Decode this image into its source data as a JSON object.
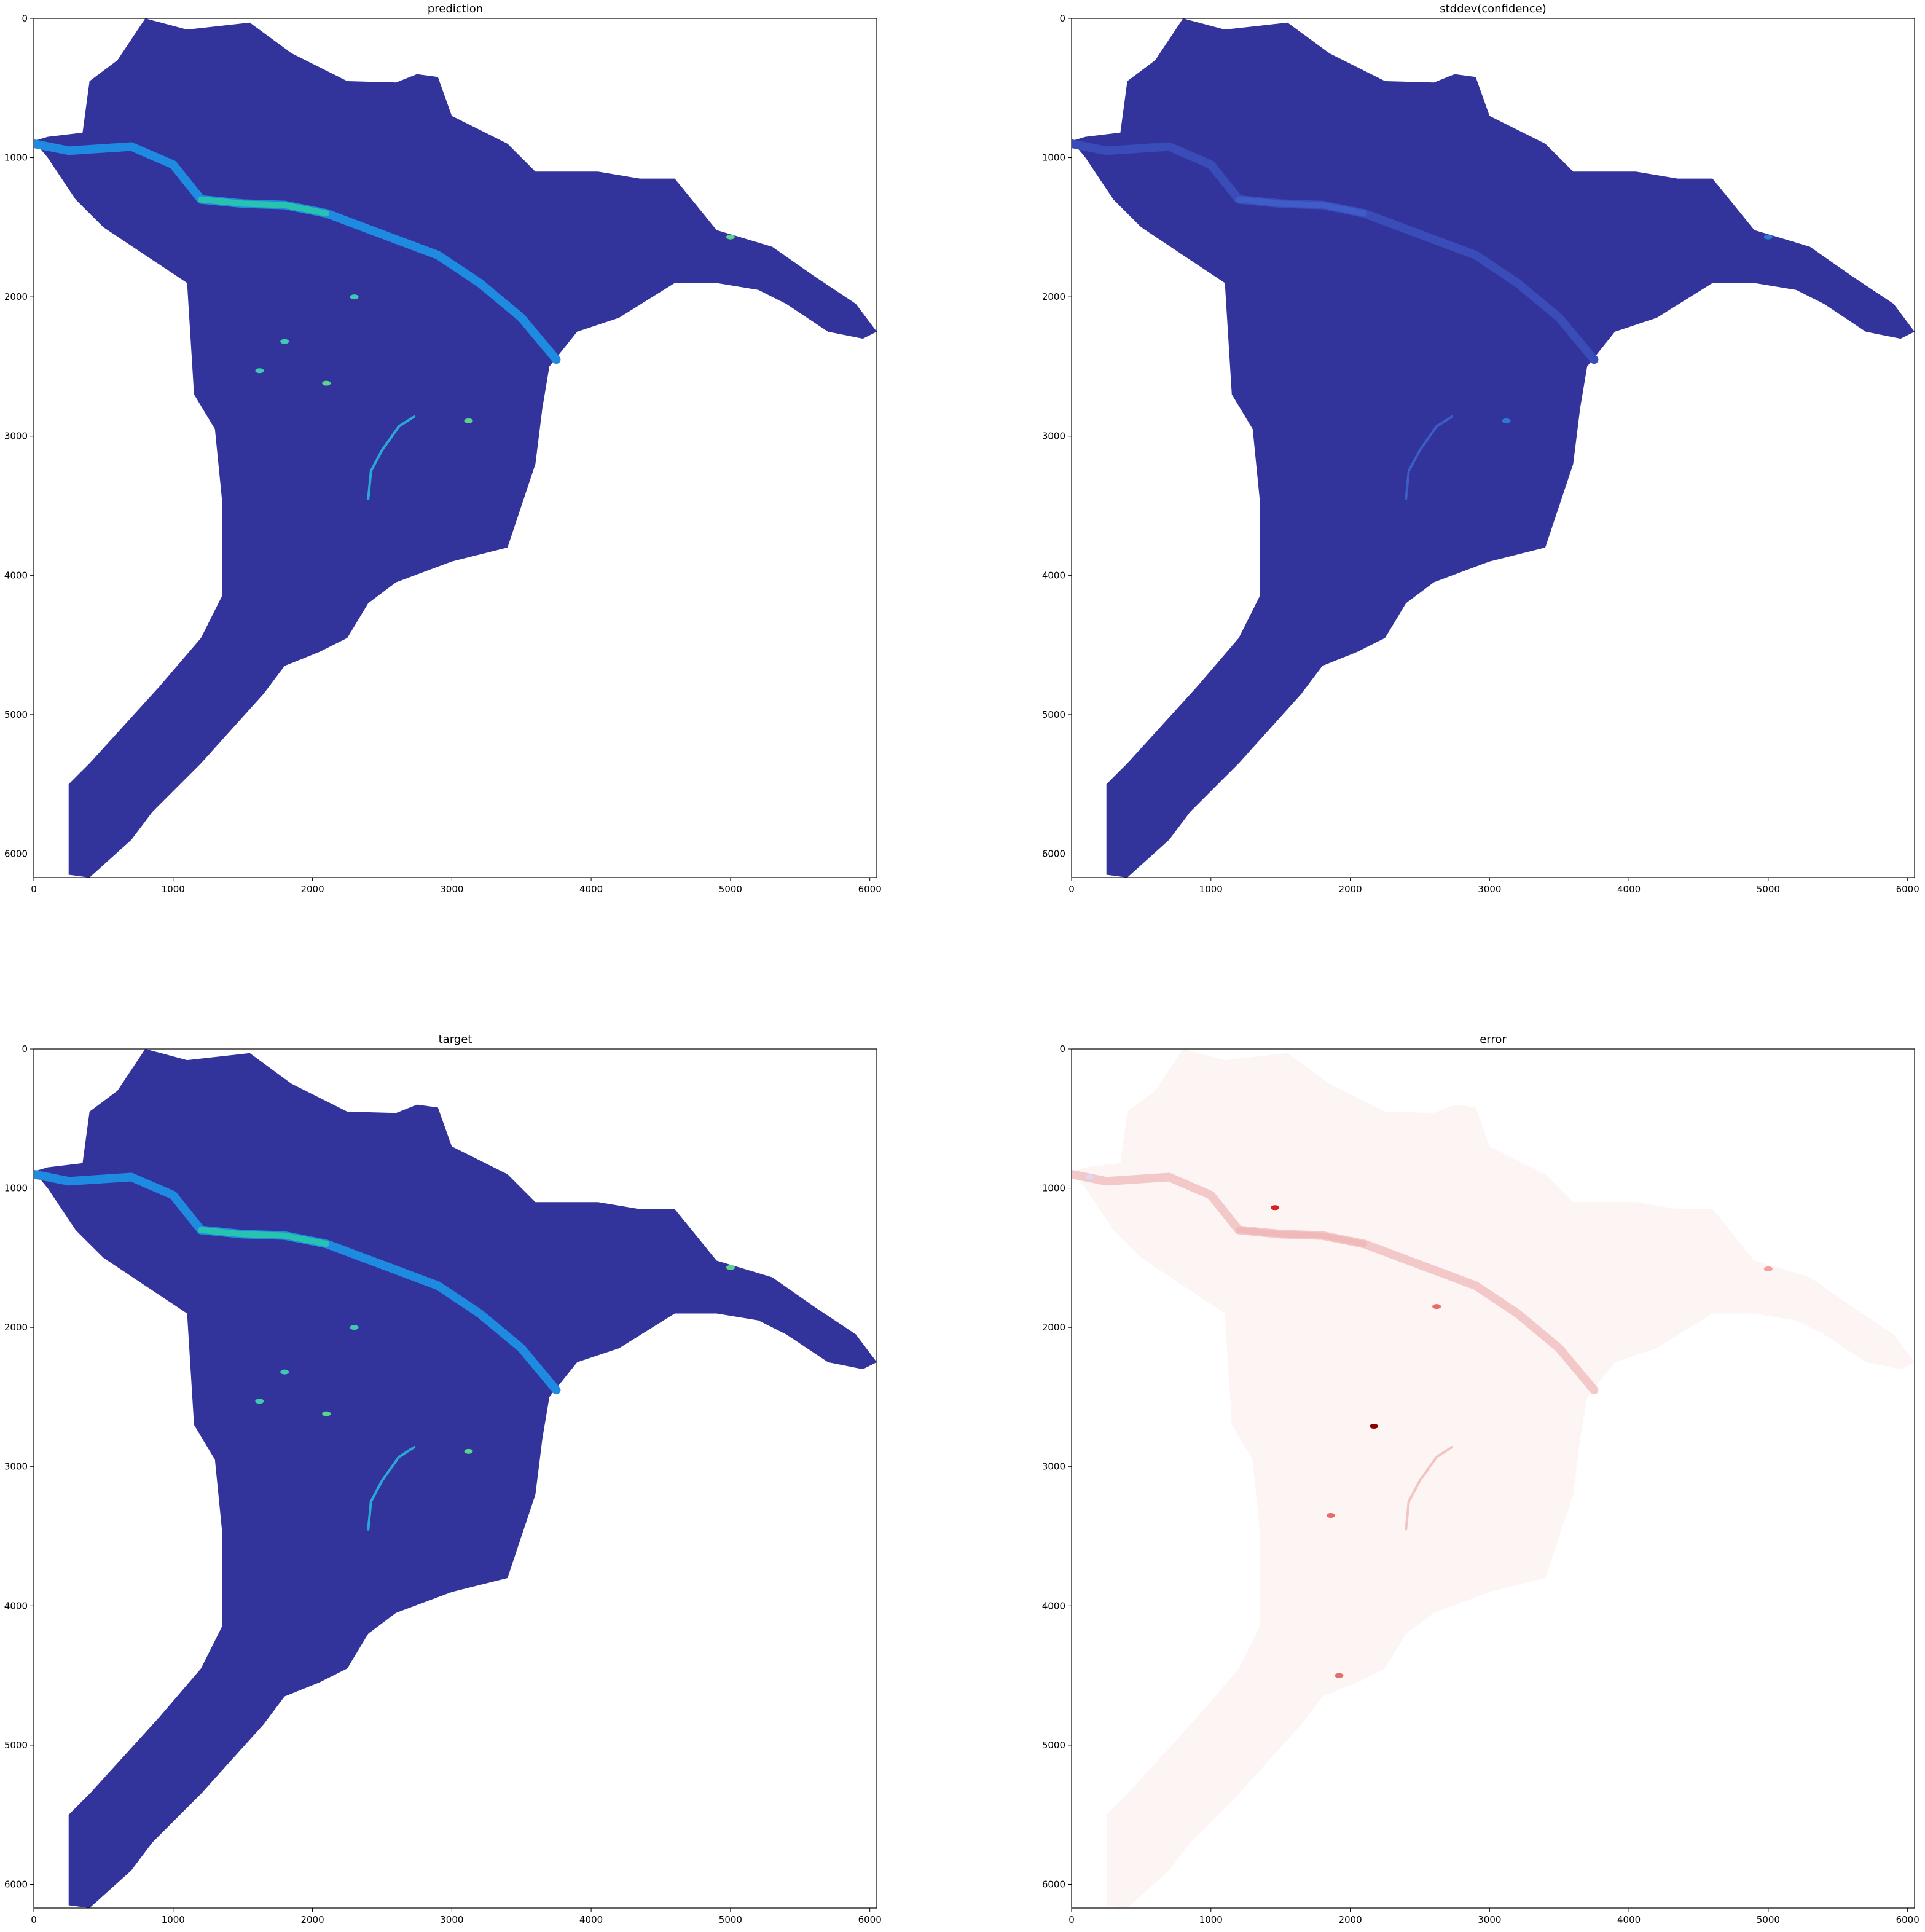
{
  "chart_data": [
    {
      "type": "heatmap",
      "title": "prediction",
      "xlim": [
        0,
        6050
      ],
      "ylim": [
        6170,
        0
      ],
      "x_ticks": [
        0,
        1000,
        2000,
        3000,
        4000,
        5000,
        6000
      ],
      "y_ticks": [
        0,
        1000,
        2000,
        3000,
        4000,
        5000,
        6000
      ],
      "colormap": "jet",
      "base_color": "#32349c",
      "grid": false,
      "features": [
        {
          "kind": "river",
          "color": "#1e8be0",
          "highlight_color": "#27c3b0",
          "points": [
            [
              0,
              900
            ],
            [
              250,
              950
            ],
            [
              700,
              920
            ],
            [
              1000,
              1050
            ],
            [
              1200,
              1300
            ],
            [
              1500,
              1330
            ],
            [
              1800,
              1340
            ],
            [
              2100,
              1400
            ],
            [
              2500,
              1550
            ],
            [
              2900,
              1700
            ],
            [
              3200,
              1900
            ],
            [
              3500,
              2150
            ],
            [
              3750,
              2450
            ]
          ]
        },
        {
          "kind": "stream",
          "color": "#2aa8d8",
          "points": [
            [
              2730,
              2860
            ],
            [
              2620,
              2930
            ],
            [
              2500,
              3100
            ],
            [
              2420,
              3250
            ],
            [
              2400,
              3450
            ]
          ]
        },
        {
          "kind": "blob",
          "color": "#5cd38a",
          "x": 5000,
          "y": 1570
        },
        {
          "kind": "blob",
          "color": "#5cd38a",
          "x": 2100,
          "y": 2620
        },
        {
          "kind": "blob",
          "color": "#5cd38a",
          "x": 3120,
          "y": 2890
        },
        {
          "kind": "blob",
          "color": "#3ec9b0",
          "x": 1620,
          "y": 2530
        },
        {
          "kind": "blob",
          "color": "#3ec9b0",
          "x": 2300,
          "y": 2000
        },
        {
          "kind": "blob",
          "color": "#3ec9b0",
          "x": 1800,
          "y": 2320
        }
      ]
    },
    {
      "type": "heatmap",
      "title": "stddev(confidence)",
      "xlim": [
        0,
        6050
      ],
      "ylim": [
        6170,
        0
      ],
      "x_ticks": [
        0,
        1000,
        2000,
        3000,
        4000,
        5000,
        6000
      ],
      "y_ticks": [
        0,
        1000,
        2000,
        3000,
        4000,
        5000,
        6000
      ],
      "colormap": "jet",
      "base_color": "#32349c",
      "grid": false,
      "features": [
        {
          "kind": "river",
          "color": "#3a4cb8",
          "highlight_color": "#3f5cc8",
          "points": [
            [
              0,
              900
            ],
            [
              250,
              950
            ],
            [
              700,
              920
            ],
            [
              1000,
              1050
            ],
            [
              1200,
              1300
            ],
            [
              1500,
              1330
            ],
            [
              1800,
              1340
            ],
            [
              2100,
              1400
            ],
            [
              2500,
              1550
            ],
            [
              2900,
              1700
            ],
            [
              3200,
              1900
            ],
            [
              3500,
              2150
            ],
            [
              3750,
              2450
            ]
          ]
        },
        {
          "kind": "stream",
          "color": "#3c5cc6",
          "points": [
            [
              2730,
              2860
            ],
            [
              2620,
              2930
            ],
            [
              2500,
              3100
            ],
            [
              2420,
              3250
            ],
            [
              2400,
              3450
            ]
          ]
        },
        {
          "kind": "blob",
          "color": "#2f78d4",
          "x": 5000,
          "y": 1570
        },
        {
          "kind": "blob",
          "color": "#2f78d4",
          "x": 3120,
          "y": 2890
        }
      ]
    },
    {
      "type": "heatmap",
      "title": "target",
      "xlim": [
        0,
        6050
      ],
      "ylim": [
        6170,
        0
      ],
      "x_ticks": [
        0,
        1000,
        2000,
        3000,
        4000,
        5000,
        6000
      ],
      "y_ticks": [
        0,
        1000,
        2000,
        3000,
        4000,
        5000,
        6000
      ],
      "colormap": "jet",
      "base_color": "#32349c",
      "grid": false,
      "features": [
        {
          "kind": "river",
          "color": "#1e8be0",
          "highlight_color": "#27c3b0",
          "points": [
            [
              0,
              900
            ],
            [
              250,
              950
            ],
            [
              700,
              920
            ],
            [
              1000,
              1050
            ],
            [
              1200,
              1300
            ],
            [
              1500,
              1330
            ],
            [
              1800,
              1340
            ],
            [
              2100,
              1400
            ],
            [
              2500,
              1550
            ],
            [
              2900,
              1700
            ],
            [
              3200,
              1900
            ],
            [
              3500,
              2150
            ],
            [
              3750,
              2450
            ]
          ]
        },
        {
          "kind": "stream",
          "color": "#2aa8d8",
          "points": [
            [
              2730,
              2860
            ],
            [
              2620,
              2930
            ],
            [
              2500,
              3100
            ],
            [
              2420,
              3250
            ],
            [
              2400,
              3450
            ]
          ]
        },
        {
          "kind": "blob",
          "color": "#5cd38a",
          "x": 5000,
          "y": 1570
        },
        {
          "kind": "blob",
          "color": "#5cd38a",
          "x": 2100,
          "y": 2620
        },
        {
          "kind": "blob",
          "color": "#5cd38a",
          "x": 3120,
          "y": 2890
        },
        {
          "kind": "blob",
          "color": "#3ec9b0",
          "x": 1620,
          "y": 2530
        },
        {
          "kind": "blob",
          "color": "#3ec9b0",
          "x": 2300,
          "y": 2000
        },
        {
          "kind": "blob",
          "color": "#3ec9b0",
          "x": 1800,
          "y": 2320
        }
      ]
    },
    {
      "type": "heatmap",
      "title": "error",
      "xlim": [
        0,
        6050
      ],
      "ylim": [
        6170,
        0
      ],
      "x_ticks": [
        0,
        1000,
        2000,
        3000,
        4000,
        5000,
        6000
      ],
      "y_ticks": [
        0,
        1000,
        2000,
        3000,
        4000,
        5000,
        6000
      ],
      "colormap": "bwr",
      "base_color": "#fdf4f4",
      "grid": false,
      "features": [
        {
          "kind": "river",
          "color": "#f3c8c8",
          "highlight_color": "#f0b8b8",
          "points": [
            [
              0,
              900
            ],
            [
              250,
              950
            ],
            [
              700,
              920
            ],
            [
              1000,
              1050
            ],
            [
              1200,
              1300
            ],
            [
              1500,
              1330
            ],
            [
              1800,
              1340
            ],
            [
              2100,
              1400
            ],
            [
              2500,
              1550
            ],
            [
              2900,
              1700
            ],
            [
              3200,
              1900
            ],
            [
              3500,
              2150
            ],
            [
              3750,
              2450
            ]
          ]
        },
        {
          "kind": "stream",
          "color": "#f2c4c4",
          "points": [
            [
              2730,
              2860
            ],
            [
              2620,
              2930
            ],
            [
              2500,
              3100
            ],
            [
              2420,
              3250
            ],
            [
              2400,
              3450
            ]
          ]
        },
        {
          "kind": "blob",
          "color": "#8b0000",
          "x": 2170,
          "y": 2710
        },
        {
          "kind": "blob",
          "color": "#d9d9f5",
          "x": 130,
          "y": 920
        },
        {
          "kind": "blob",
          "color": "#f0a0a0",
          "x": 5000,
          "y": 1580
        },
        {
          "kind": "blob",
          "color": "#d82020",
          "x": 1460,
          "y": 1140
        },
        {
          "kind": "blob",
          "color": "#e86a6a",
          "x": 2620,
          "y": 1850
        },
        {
          "kind": "blob",
          "color": "#e86a6a",
          "x": 1860,
          "y": 3350
        },
        {
          "kind": "blob",
          "color": "#e07070",
          "x": 1920,
          "y": 4500
        }
      ]
    }
  ]
}
